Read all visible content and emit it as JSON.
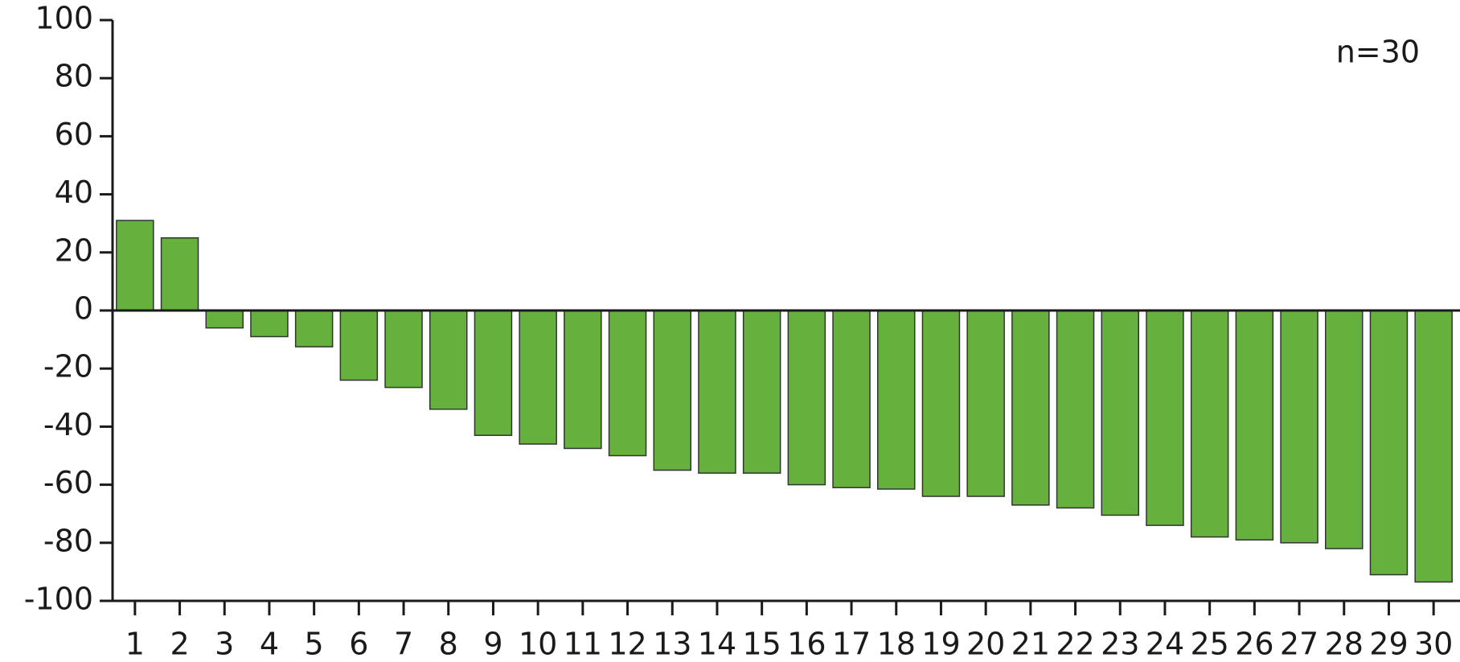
{
  "chart_data": {
    "type": "bar",
    "annotation": "n=30",
    "categories": [
      "1",
      "2",
      "3",
      "4",
      "5",
      "6",
      "7",
      "8",
      "9",
      "10",
      "11",
      "12",
      "13",
      "14",
      "15",
      "16",
      "17",
      "18",
      "19",
      "20",
      "21",
      "22",
      "23",
      "24",
      "25",
      "26",
      "27",
      "28",
      "29",
      "30"
    ],
    "values": [
      31,
      25,
      -6,
      -9,
      -12.5,
      -24,
      -26.5,
      -34,
      -43,
      -46,
      -47.5,
      -50,
      -55,
      -56,
      -56,
      -60,
      -61,
      -61.5,
      -64,
      -64,
      -67,
      -68,
      -70.5,
      -74,
      -78,
      -79,
      -80,
      -82,
      -91,
      -93.5
    ],
    "color": "#66b13d",
    "ylim": [
      -100,
      100
    ],
    "yticks": [
      -100,
      -80,
      -60,
      -40,
      -20,
      0,
      20,
      40,
      60,
      80,
      100
    ],
    "grid": false
  }
}
